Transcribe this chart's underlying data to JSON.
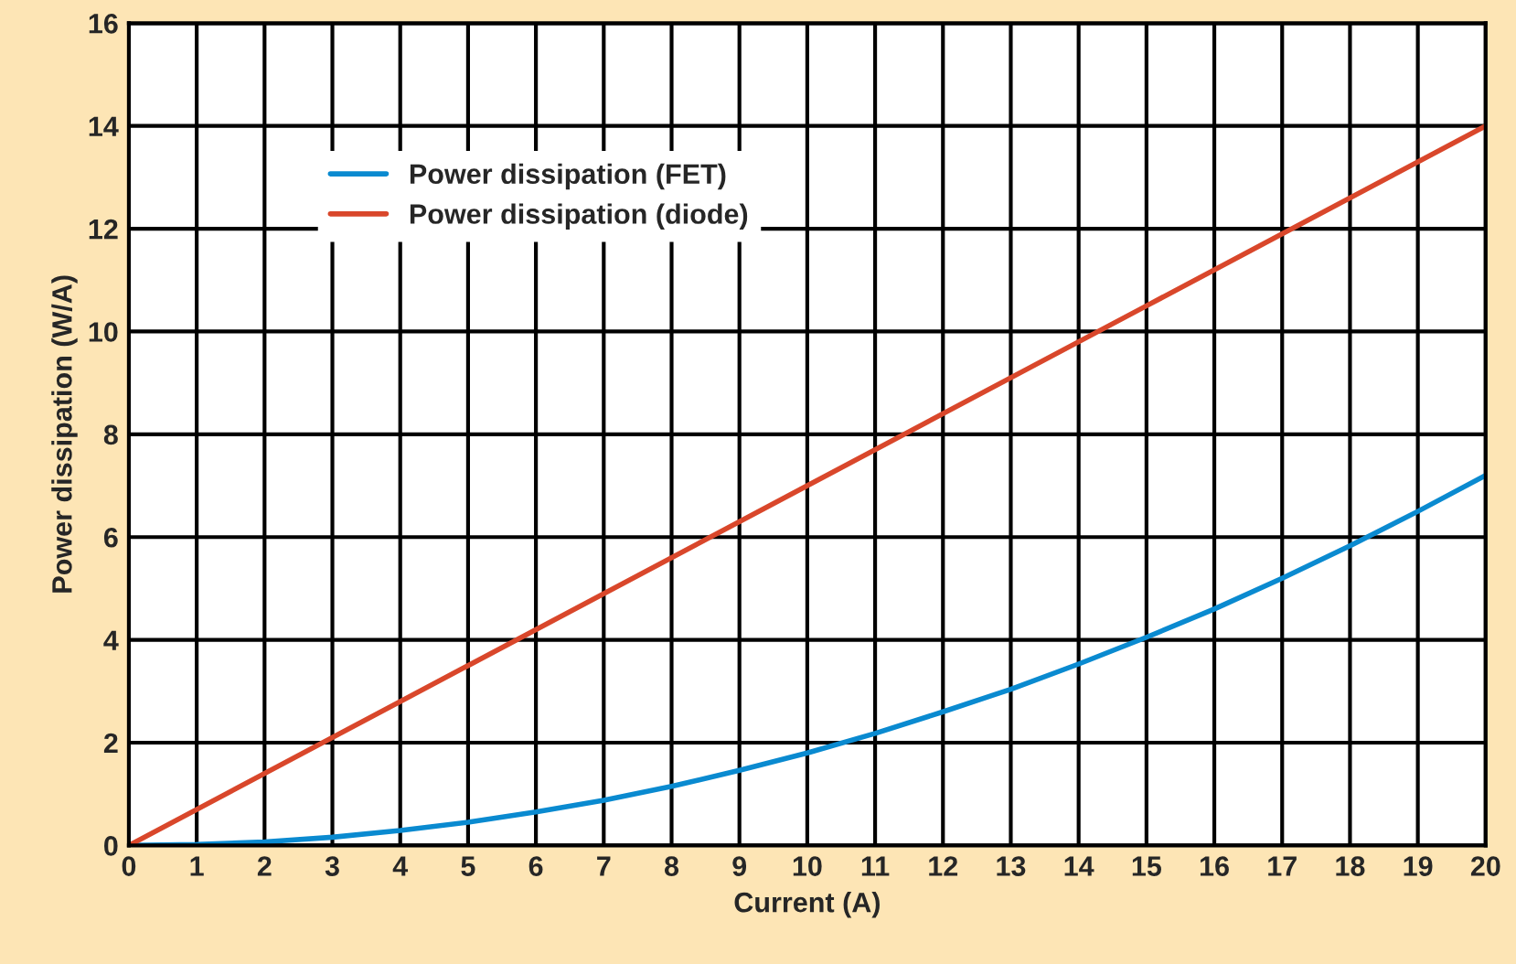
{
  "chart_data": {
    "type": "line",
    "xlabel": "Current (A)",
    "ylabel": "Power dissipation (W/A)",
    "xlim": [
      0,
      20
    ],
    "xticks": [
      0,
      1,
      2,
      3,
      4,
      5,
      6,
      7,
      8,
      9,
      10,
      11,
      12,
      13,
      14,
      15,
      16,
      17,
      18,
      19,
      20
    ],
    "ylim": [
      0,
      16
    ],
    "yticks": [
      0,
      2,
      4,
      6,
      8,
      10,
      12,
      14,
      16
    ],
    "grid": true,
    "legend": "top left",
    "series": [
      {
        "name": "Power dissipation (FET)",
        "color": "#0a8ad0",
        "x": [
          0,
          1,
          2,
          3,
          4,
          5,
          6,
          7,
          8,
          9,
          10,
          11,
          12,
          13,
          14,
          15,
          16,
          17,
          18,
          19,
          20
        ],
        "values": [
          0,
          0.02,
          0.07,
          0.16,
          0.29,
          0.45,
          0.65,
          0.88,
          1.15,
          1.46,
          1.8,
          2.18,
          2.6,
          3.04,
          3.53,
          4.05,
          4.6,
          5.2,
          5.83,
          6.5,
          7.2
        ]
      },
      {
        "name": "Power dissipation (diode)",
        "color": "#d9472b",
        "x": [
          0,
          5,
          10,
          15,
          20
        ],
        "values": [
          0,
          3.5,
          7.0,
          10.5,
          14.0
        ]
      }
    ]
  }
}
